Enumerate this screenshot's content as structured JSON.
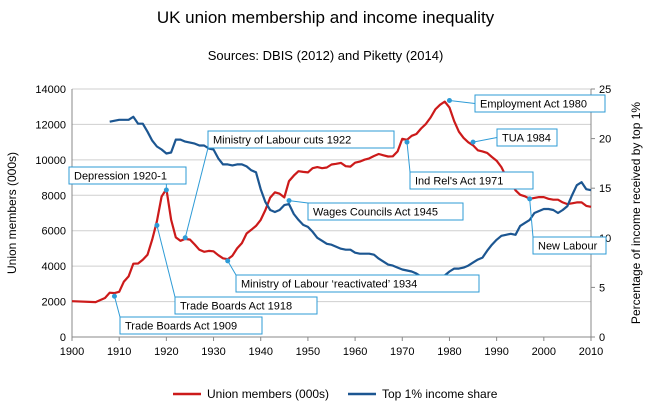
{
  "chart_data": {
    "type": "line",
    "title": "UK union membership and income inequality",
    "subtitle": "Sources: DBIS (2012) and Piketty (2014)",
    "xlabel": "",
    "ylabel": "Union members (000s)",
    "y2label": "Percentage of income received by top 1%",
    "xlim": [
      1900,
      2010
    ],
    "ylim": [
      0,
      14000
    ],
    "y2lim": [
      0,
      25
    ],
    "x_ticks": [
      "1900",
      "1910",
      "1920",
      "1930",
      "1940",
      "1950",
      "1960",
      "1970",
      "1980",
      "1990",
      "2000",
      "2010"
    ],
    "y_ticks": [
      "0",
      "2000",
      "4000",
      "6000",
      "8000",
      "10000",
      "12000",
      "14000"
    ],
    "y2_ticks": [
      "0",
      "5",
      "10",
      "15",
      "20",
      "25"
    ],
    "grid": true,
    "legend_position": "bottom",
    "series": [
      {
        "name": "Union members (000s)",
        "axis": "left",
        "color": "#cc1a1a",
        "x": [
          1900,
          1905,
          1907,
          1908,
          1909,
          1910,
          1911,
          1912,
          1913,
          1914,
          1915,
          1916,
          1917,
          1918,
          1919,
          1920,
          1921,
          1922,
          1923,
          1924,
          1925,
          1926,
          1927,
          1928,
          1929,
          1930,
          1931,
          1932,
          1933,
          1934,
          1935,
          1936,
          1937,
          1938,
          1939,
          1940,
          1941,
          1942,
          1943,
          1944,
          1945,
          1946,
          1947,
          1948,
          1949,
          1950,
          1951,
          1952,
          1953,
          1954,
          1955,
          1956,
          1957,
          1958,
          1959,
          1960,
          1961,
          1962,
          1963,
          1964,
          1965,
          1966,
          1967,
          1968,
          1969,
          1970,
          1971,
          1972,
          1973,
          1974,
          1975,
          1976,
          1977,
          1978,
          1979,
          1980,
          1981,
          1982,
          1983,
          1984,
          1985,
          1986,
          1987,
          1988,
          1989,
          1990,
          1991,
          1992,
          1993,
          1994,
          1995,
          1996,
          1997,
          1998,
          1999,
          2000,
          2001,
          2002,
          2003,
          2004,
          2005,
          2006,
          2007,
          2008,
          2009,
          2010
        ],
        "values": [
          2020,
          1970,
          2200,
          2500,
          2480,
          2550,
          3130,
          3420,
          4140,
          4150,
          4360,
          4640,
          5500,
          6530,
          7930,
          8350,
          6630,
          5620,
          5430,
          5540,
          5500,
          5220,
          4920,
          4810,
          4860,
          4840,
          4620,
          4440,
          4390,
          4590,
          5000,
          5300,
          5840,
          6050,
          6270,
          6610,
          7170,
          7870,
          8170,
          8090,
          7880,
          8800,
          9110,
          9360,
          9320,
          9290,
          9530,
          9590,
          9530,
          9570,
          9740,
          9780,
          9830,
          9640,
          9620,
          9840,
          9900,
          10010,
          10080,
          10220,
          10330,
          10260,
          10190,
          10200,
          10480,
          11190,
          11130,
          11360,
          11460,
          11770,
          12030,
          12390,
          12850,
          13110,
          13290,
          12950,
          12180,
          11590,
          11240,
          10990,
          10820,
          10540,
          10480,
          10390,
          10160,
          9950,
          9590,
          9050,
          8700,
          8280,
          8030,
          7940,
          7800,
          7850,
          7900,
          7900,
          7800,
          7750,
          7750,
          7600,
          7500,
          7550,
          7600,
          7600,
          7400,
          7350
        ]
      },
      {
        "name": "Top 1% income share",
        "axis": "right",
        "color": "#1c5691",
        "x": [
          1908,
          1910,
          1912,
          1913,
          1914,
          1915,
          1916,
          1917,
          1918,
          1919,
          1920,
          1921,
          1922,
          1923,
          1924,
          1925,
          1926,
          1927,
          1928,
          1929,
          1930,
          1931,
          1932,
          1933,
          1934,
          1935,
          1936,
          1937,
          1938,
          1939,
          1940,
          1941,
          1942,
          1943,
          1944,
          1945,
          1946,
          1947,
          1948,
          1949,
          1950,
          1951,
          1952,
          1953,
          1954,
          1955,
          1956,
          1957,
          1958,
          1959,
          1960,
          1961,
          1962,
          1963,
          1964,
          1965,
          1966,
          1967,
          1968,
          1969,
          1970,
          1971,
          1972,
          1973,
          1974,
          1975,
          1976,
          1977,
          1978,
          1979,
          1980,
          1981,
          1982,
          1983,
          1984,
          1985,
          1986,
          1987,
          1988,
          1989,
          1990,
          1991,
          1992,
          1993,
          1994,
          1995,
          1996,
          1997,
          1998,
          1999,
          2000,
          2001,
          2002,
          2003,
          2004,
          2005,
          2006,
          2007,
          2008,
          2009,
          2010
        ],
        "values": [
          21.7,
          21.9,
          21.9,
          22.2,
          21.5,
          21.5,
          20.7,
          19.8,
          19.2,
          18.9,
          18.5,
          18.6,
          19.9,
          19.9,
          19.7,
          19.6,
          19.5,
          19.3,
          19.3,
          19.0,
          18.9,
          18.0,
          17.4,
          17.4,
          17.3,
          17.4,
          17.4,
          17.2,
          16.8,
          16.6,
          14.9,
          13.6,
          12.8,
          12.6,
          12.8,
          13.3,
          13.4,
          12.4,
          11.8,
          11.3,
          11.1,
          10.6,
          10.0,
          9.7,
          9.4,
          9.3,
          9.1,
          8.9,
          8.8,
          8.8,
          8.5,
          8.4,
          8.4,
          8.4,
          8.3,
          7.9,
          7.6,
          7.3,
          7.2,
          7.0,
          6.8,
          6.7,
          6.6,
          6.4,
          6.1,
          6.0,
          5.8,
          5.9,
          6.1,
          6.2,
          6.6,
          6.9,
          6.9,
          7.0,
          7.2,
          7.5,
          7.8,
          8.0,
          8.7,
          9.3,
          9.8,
          10.2,
          10.3,
          10.4,
          10.3,
          11.2,
          11.5,
          11.8,
          12.5,
          12.7,
          12.9,
          12.9,
          12.8,
          12.5,
          12.8,
          13.2,
          14.3,
          15.3,
          15.6,
          14.9,
          14.8
        ]
      }
    ],
    "annotations": [
      {
        "label": "Trade Boards Act 1909",
        "x": 1909,
        "axis": "left",
        "y": 2300
      },
      {
        "label": "Trade Boards Act 1918",
        "x": 1918,
        "axis": "left",
        "y": 6300
      },
      {
        "label": "Depression 1920-1",
        "x": 1920,
        "axis": "left",
        "y": 8300
      },
      {
        "label": "Ministry of Labour cuts 1922",
        "x": 1924,
        "axis": "left",
        "y": 5600
      },
      {
        "label": "Ministry of Labour ‘reactivated’ 1934",
        "x": 1933,
        "axis": "left",
        "y": 4300
      },
      {
        "label": "Wages Councils Act 1945",
        "x": 1946,
        "axis": "left",
        "y": 7700
      },
      {
        "label": "Ind Rel's Act 1971",
        "x": 1971,
        "axis": "left",
        "y": 11000
      },
      {
        "label": "Employment Act 1980",
        "x": 1980,
        "axis": "left",
        "y": 13350
      },
      {
        "label": "TUA 1984",
        "x": 1985,
        "axis": "left",
        "y": 11000
      },
      {
        "label": "New Labour",
        "x": 1997,
        "axis": "left",
        "y": 7800
      }
    ]
  }
}
